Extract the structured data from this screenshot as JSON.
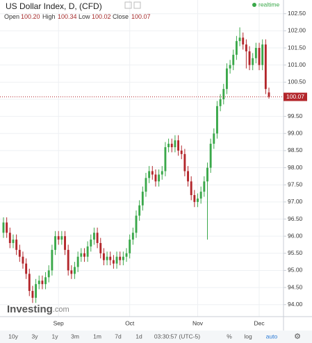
{
  "chart_data": {
    "type": "candlestick",
    "title": "US Dollar Index, D, (CFD)",
    "status": "realtime",
    "header": {
      "open_label": "Open",
      "open": "100.20",
      "high_label": "High",
      "high": "100.34",
      "low_label": "Low",
      "low": "100.02",
      "close_label": "Close",
      "close": "100.07"
    },
    "last_price_label": "100.07",
    "brand": "Investing",
    "brand_suffix": ".com",
    "toolbar": [
      "10y",
      "3y",
      "1y",
      "3m",
      "1m",
      "7d",
      "1d"
    ],
    "clock": "03:30:57 (UTC-5)",
    "toolbar_right": [
      "%",
      "log",
      "auto"
    ],
    "up_color": "#3aa84a",
    "down_color": "#b3262b",
    "grid": true,
    "categories": [
      null,
      null,
      null,
      null,
      null,
      null,
      null,
      null,
      null,
      null,
      null,
      null,
      null,
      null,
      null,
      null,
      null,
      "Sep",
      null,
      null,
      null,
      null,
      null,
      null,
      null,
      null,
      null,
      null,
      null,
      null,
      null,
      null,
      null,
      null,
      null,
      null,
      null,
      null,
      null,
      "Oct",
      null,
      null,
      null,
      null,
      null,
      null,
      null,
      null,
      null,
      null,
      null,
      null,
      null,
      null,
      null,
      null,
      null,
      null,
      null,
      null,
      "Nov",
      null,
      null,
      null,
      null,
      null,
      null,
      null,
      null,
      null,
      null,
      null,
      null,
      null,
      null,
      null,
      null,
      null,
      null,
      "Dec",
      null,
      null,
      null
    ],
    "open": [
      96.1,
      96.4,
      96.1,
      95.8,
      95.9,
      95.6,
      95.4,
      95.2,
      94.9,
      94.4,
      94.2,
      94.6,
      94.7,
      94.6,
      94.8,
      95.0,
      95.6,
      96.0,
      95.9,
      96.0,
      95.6,
      95.0,
      94.9,
      95.1,
      95.4,
      95.5,
      95.4,
      95.7,
      95.9,
      96.1,
      95.8,
      95.5,
      95.3,
      95.4,
      95.3,
      95.2,
      95.4,
      95.3,
      95.4,
      95.5,
      95.9,
      96.1,
      96.6,
      96.9,
      97.3,
      97.7,
      97.9,
      97.8,
      97.6,
      97.8,
      97.9,
      98.6,
      98.7,
      98.6,
      98.8,
      98.5,
      98.4,
      97.9,
      97.6,
      97.2,
      97.0,
      97.1,
      97.3,
      97.6,
      98.0,
      98.7,
      99.0,
      99.8,
      100.0,
      100.3,
      100.9,
      101.0,
      101.3,
      101.7,
      101.8,
      101.6,
      101.4,
      101.0,
      101.2,
      101.5,
      101.0,
      101.6,
      100.2
    ],
    "high": [
      96.55,
      96.55,
      96.25,
      96.05,
      96.05,
      95.75,
      95.55,
      95.35,
      95.05,
      94.55,
      94.75,
      94.85,
      94.85,
      94.95,
      95.15,
      95.75,
      96.15,
      96.15,
      96.15,
      96.15,
      95.75,
      95.15,
      95.25,
      95.55,
      95.65,
      95.65,
      95.85,
      96.05,
      96.25,
      96.25,
      95.95,
      95.65,
      95.55,
      95.55,
      95.45,
      95.55,
      95.55,
      95.55,
      95.65,
      96.05,
      96.25,
      96.75,
      97.05,
      97.45,
      97.85,
      98.05,
      98.05,
      97.95,
      97.95,
      98.05,
      98.75,
      98.85,
      98.85,
      98.95,
      98.95,
      98.65,
      98.55,
      98.05,
      97.75,
      97.35,
      97.25,
      97.45,
      97.75,
      98.15,
      98.85,
      99.15,
      99.95,
      100.15,
      100.45,
      101.05,
      101.15,
      101.45,
      101.85,
      102.1,
      101.95,
      101.75,
      101.55,
      101.35,
      101.65,
      101.65,
      101.75,
      101.75,
      100.34
    ],
    "low": [
      95.95,
      95.95,
      95.65,
      95.65,
      95.45,
      95.25,
      95.05,
      94.75,
      94.25,
      94.05,
      94.05,
      94.45,
      94.45,
      94.45,
      94.65,
      94.85,
      95.45,
      95.75,
      95.75,
      95.45,
      94.85,
      94.75,
      94.75,
      94.95,
      95.25,
      95.25,
      95.25,
      95.55,
      95.75,
      95.65,
      95.35,
      95.15,
      95.15,
      95.15,
      95.05,
      95.05,
      95.15,
      95.15,
      95.25,
      95.35,
      95.75,
      95.95,
      96.45,
      96.75,
      97.15,
      97.55,
      97.65,
      97.45,
      97.45,
      97.65,
      97.75,
      98.45,
      98.45,
      98.45,
      98.35,
      98.25,
      97.75,
      97.45,
      97.05,
      96.85,
      96.85,
      96.95,
      97.15,
      95.9,
      97.85,
      98.55,
      98.85,
      99.65,
      99.85,
      100.15,
      100.75,
      100.85,
      101.15,
      101.55,
      101.45,
      100.9,
      100.85,
      100.85,
      101.05,
      100.85,
      100.85,
      100.15,
      100.02
    ],
    "close": [
      96.4,
      96.1,
      95.8,
      95.9,
      95.6,
      95.4,
      95.2,
      94.9,
      94.4,
      94.2,
      94.6,
      94.7,
      94.6,
      94.8,
      95.0,
      95.6,
      96.0,
      95.9,
      96.0,
      95.6,
      95.0,
      94.9,
      95.1,
      95.4,
      95.5,
      95.4,
      95.7,
      95.9,
      96.1,
      95.8,
      95.5,
      95.3,
      95.4,
      95.3,
      95.2,
      95.4,
      95.3,
      95.4,
      95.5,
      95.9,
      96.1,
      96.6,
      96.9,
      97.3,
      97.7,
      97.9,
      97.8,
      97.6,
      97.8,
      97.9,
      98.6,
      98.7,
      98.6,
      98.8,
      98.5,
      98.4,
      97.9,
      97.6,
      97.2,
      97.0,
      97.1,
      97.3,
      97.6,
      98.0,
      98.7,
      99.0,
      99.8,
      100.0,
      100.3,
      100.9,
      101.0,
      101.3,
      101.7,
      101.8,
      101.6,
      101.4,
      101.0,
      101.2,
      101.5,
      101.0,
      101.6,
      100.3,
      100.07
    ],
    "ylim": [
      93.65,
      102.9
    ],
    "yticks": [
      {
        "value": 94,
        "label": "94.00"
      },
      {
        "value": 94.5,
        "label": "94.50"
      },
      {
        "value": 95,
        "label": "95.00"
      },
      {
        "value": 95.5,
        "label": "95.50"
      },
      {
        "value": 96,
        "label": "96.00"
      },
      {
        "value": 96.5,
        "label": "96.50"
      },
      {
        "value": 97,
        "label": "97.00"
      },
      {
        "value": 97.5,
        "label": "97.50"
      },
      {
        "value": 98,
        "label": "98.00"
      },
      {
        "value": 98.5,
        "label": "98.50"
      },
      {
        "value": 99,
        "label": "99.00"
      },
      {
        "value": 99.5,
        "label": "99.50"
      },
      {
        "value": 100,
        "label": "100.00"
      },
      {
        "value": 100.5,
        "label": "100.50"
      },
      {
        "value": 101,
        "label": "101.00"
      },
      {
        "value": 101.5,
        "label": "101.50"
      },
      {
        "value": 102,
        "label": "102.00"
      },
      {
        "value": 102.5,
        "label": "102.50"
      }
    ]
  }
}
